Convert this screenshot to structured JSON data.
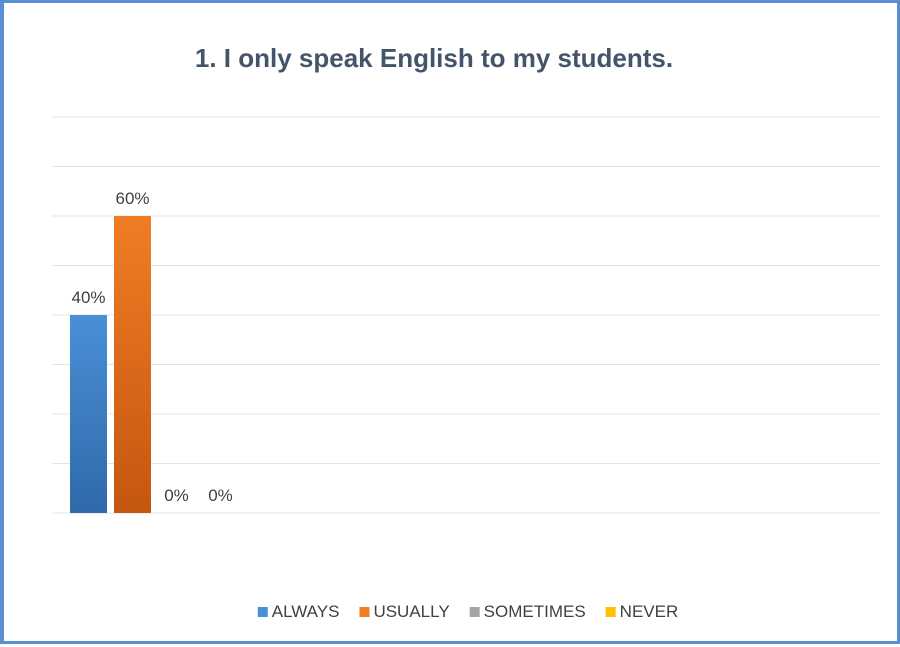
{
  "chart_data": {
    "type": "bar",
    "title": "1. I only speak English to my students.",
    "xlabel": "",
    "ylabel": "",
    "ylim": [
      0,
      80
    ],
    "grid": true,
    "legend_position": "bottom",
    "value_format": "percent",
    "series": [
      {
        "name": "ALWAYS",
        "value": 40,
        "label": "40%",
        "color": "#4a8fd6",
        "color_dark": "#2f6aaa"
      },
      {
        "name": "USUALLY",
        "value": 60,
        "label": "60%",
        "color": "#f07c25",
        "color_dark": "#c4570f"
      },
      {
        "name": "SOMETIMES",
        "value": 0,
        "label": "0%",
        "color": "#a5a5a5",
        "color_dark": "#7f7f7f"
      },
      {
        "name": "NEVER",
        "value": 0,
        "label": "0%",
        "color": "#ffc000",
        "color_dark": "#d9a300"
      }
    ]
  }
}
